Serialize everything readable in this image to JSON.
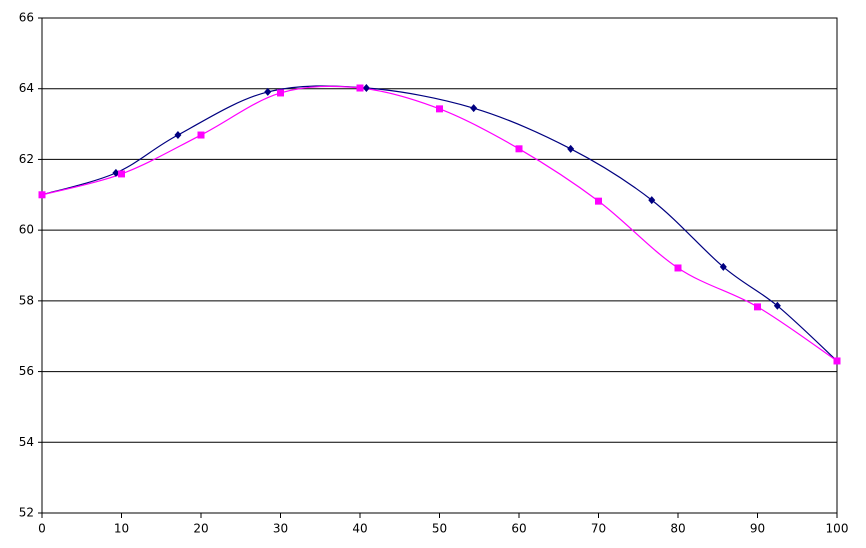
{
  "chart_data": {
    "type": "line",
    "series": [
      {
        "color": "#000080",
        "marker": "diamond",
        "x": [
          0,
          9.3,
          17.1,
          28.4,
          40.8,
          54.3,
          66.5,
          76.7,
          85.7,
          92.5,
          100
        ],
        "values": [
          61.0,
          61.62,
          62.69,
          63.91,
          64.02,
          63.45,
          62.3,
          60.85,
          58.96,
          57.86,
          56.3
        ]
      },
      {
        "color": "#ff00ff",
        "marker": "square",
        "x": [
          0,
          10,
          20,
          30,
          40,
          50,
          60,
          70,
          80,
          90,
          100
        ],
        "values": [
          61.0,
          61.59,
          62.69,
          63.88,
          64.02,
          63.43,
          62.3,
          60.82,
          58.93,
          57.83,
          56.3
        ]
      }
    ],
    "xlim": [
      0,
      100
    ],
    "xticks": [
      0,
      10,
      20,
      30,
      40,
      50,
      60,
      70,
      80,
      90,
      100
    ],
    "ylim": [
      52,
      66
    ],
    "yticks": [
      52,
      54,
      56,
      58,
      60,
      62,
      64,
      66
    ],
    "grid": true,
    "smooth": true
  }
}
